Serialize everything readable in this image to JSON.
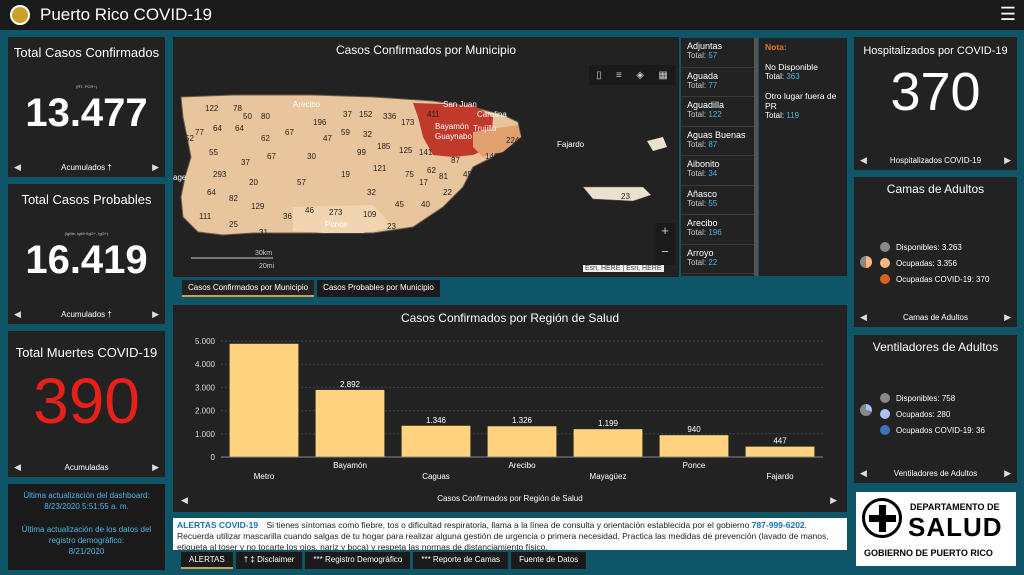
{
  "app": {
    "title": "Puerto Rico COVID-19"
  },
  "kpi_confirmed": {
    "title": "Total Casos Confirmados",
    "sub": "(RT- PCR+)",
    "value": "13.477",
    "foot": "Acumulados †"
  },
  "kpi_probable": {
    "title": "Total Casos Probables",
    "sub": "(IgMe, IgM+/IgG+, IgG+)",
    "value": "16.419",
    "foot": "Acumulados †"
  },
  "kpi_deaths": {
    "title": "Total Muertes COVID-19",
    "value": "390",
    "foot": "Acumuladas",
    "color": "#e8201a"
  },
  "info": {
    "line1": "Última actualización del dashboard:",
    "line2": "8/23/2020 5:51:55 a. m.",
    "line3": "Última actualización de los datos del",
    "line4": "registro demográfico:",
    "line5": "8/21/2020"
  },
  "map": {
    "title": "Casos Confirmados por Municipio",
    "attribution": "Esri, HERE | Esri, HERE",
    "scale_km": "30km",
    "scale_mi": "20mi",
    "zoom_in": "+",
    "zoom_out": "−",
    "labels": {
      "san_juan": "San Juan",
      "carolina": "Carolina",
      "bayamon": "Bayamón",
      "guaynabo": "Guaynabo",
      "trujillo": "Trujillo",
      "fajardo": "Fajardo",
      "arecibo": "Arecibo",
      "ponce": "Ponce",
      "age": "age"
    },
    "counts": {
      "v1": "122",
      "v2": "78",
      "v3": "64",
      "v4": "50",
      "v5": "80",
      "v6": "196",
      "v7": "37",
      "v8": "152",
      "v9": "336",
      "v10": "173",
      "v11": "411",
      "v12": "52",
      "v13": "77",
      "v14": "64",
      "v15": "62",
      "v16": "67",
      "v17": "47",
      "v18": "59",
      "v19": "32",
      "v20": "99",
      "v21": "185",
      "v22": "125",
      "v23": "141",
      "v24": "55",
      "v25": "37",
      "v26": "67",
      "v27": "30",
      "v28": "87",
      "v29": "140",
      "v30": "93",
      "v31": "224",
      "v32": "190",
      "v33": "70",
      "v34": "76",
      "v35": "19",
      "v36": "121",
      "v37": "75",
      "v38": "62",
      "v39": "81",
      "v40": "453",
      "v41": "17",
      "v42": "47",
      "v43": "78",
      "v44": "29",
      "v45": "293",
      "v46": "20",
      "v47": "57",
      "v48": "22",
      "v49": "34",
      "v50": "99",
      "v51": "64",
      "v52": "82",
      "v53": "129",
      "v54": "46",
      "v55": "32",
      "v56": "45",
      "v57": "40",
      "v58": "40",
      "v59": "51",
      "v60": "21",
      "v61": "23",
      "v62": "111",
      "v63": "25",
      "v64": "36",
      "v65": "273",
      "v66": "109",
      "v67": "23",
      "v68": "56",
      "v69": "22",
      "v70": "21",
      "v71": "31"
    }
  },
  "munis": [
    {
      "name": "Adjuntas",
      "total_label": "Total:",
      "total": "57"
    },
    {
      "name": "Aguada",
      "total_label": "Total:",
      "total": "77"
    },
    {
      "name": "Aguadilla",
      "total_label": "Total:",
      "total": "122"
    },
    {
      "name": "Aguas Buenas",
      "total_label": "Total:",
      "total": "87"
    },
    {
      "name": "Aibonito",
      "total_label": "Total:",
      "total": "34"
    },
    {
      "name": "Añasco",
      "total_label": "Total:",
      "total": "55"
    },
    {
      "name": "Arecibo",
      "total_label": "Total:",
      "total": "196"
    },
    {
      "name": "Arroyo",
      "total_label": "Total:",
      "total": "22"
    }
  ],
  "nota": {
    "title": "Nota:",
    "item1": "No Disponible",
    "total_label": "Total:",
    "item1_total": "363",
    "item2": "Otro lugar fuera de PR",
    "item2_total": "119"
  },
  "map_tabs": [
    "Casos Confirmados por Municipio",
    "Casos Probables por Municipio"
  ],
  "chart_data": {
    "type": "bar",
    "title": "Casos Confirmados por Región de Salud",
    "xlabel": "Casos Confirmados por Región de Salud",
    "categories": [
      "Metro",
      "Bayamón",
      "Caguas",
      "Arecibo",
      "Mayagüez",
      "Ponce",
      "Fajardo"
    ],
    "values": [
      4880,
      2892,
      1346,
      1326,
      1199,
      940,
      447
    ],
    "value_labels": [
      "",
      "2.892",
      "1.346",
      "1.326",
      "1.199",
      "940",
      "447"
    ],
    "yticks": [
      "0",
      "1.000",
      "2.000",
      "3.000",
      "4.000",
      "5.000"
    ],
    "ylim": [
      0,
      5000
    ],
    "bar_color": "#ffd37f",
    "grid": true
  },
  "hosp": {
    "title": "Hospitalizados por COVID-19",
    "value": "370",
    "foot": "Hospitalizados COVID-19"
  },
  "beds": {
    "title": "Camas de Adultos",
    "items": [
      {
        "label": "Disponibles:",
        "value": "3.263",
        "color": "#888888"
      },
      {
        "label": "Ocupadas:",
        "value": "3.356",
        "color": "#f5b883"
      },
      {
        "label": "Ocupadas COVID-19:",
        "value": "370",
        "color": "#d9631e"
      }
    ],
    "foot": "Camas de Adultos"
  },
  "vents": {
    "title": "Ventiladores de Adultos",
    "items": [
      {
        "label": "Disponibles:",
        "value": "758",
        "color": "#888888"
      },
      {
        "label": "Ocupados:",
        "value": "280",
        "color": "#a8c3ee"
      },
      {
        "label": "Ocupados COVID-19:",
        "value": "36",
        "color": "#3f73b8"
      }
    ],
    "foot": "Ventiladores de Adultos"
  },
  "alerts": {
    "heading": "ALERTAS COVID-19",
    "text1": "Si tienes síntomas como fiebre, tos o dificultad respiratoria, llama a la línea de consulta y orientación establecida por el gobierno",
    "phone": "787-999-6202",
    "text2": ". Recuerda utilizar mascarilla cuando salgas de tu hogar para realizar alguna gestión de urgencia o primera necesidad. Practica las medidas de prevención (lavado de manos, etiqueta al toser y no tocarte los ojos, nariz y boca) y respeta las normas de distanciamiento físico."
  },
  "bottom_tabs": [
    "ALERTAS",
    "† ‡ Disclaimer",
    "*** Registro Demográfico",
    "*** Reporte de Camas",
    "Fuente de Datos"
  ],
  "salud": {
    "line1": "DEPARTAMENTO DE",
    "line2": "SALUD",
    "line3": "GOBIERNO DE PUERTO RICO"
  }
}
